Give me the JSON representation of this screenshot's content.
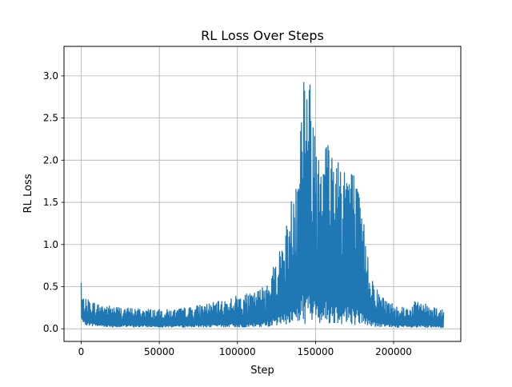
{
  "chart_data": {
    "type": "line",
    "title": "RL Loss Over Steps",
    "xlabel": "Step",
    "ylabel": "RL Loss",
    "xlim": [
      -11000,
      243000
    ],
    "ylim": [
      -0.15,
      3.35
    ],
    "xticks": [
      0,
      50000,
      100000,
      150000,
      200000
    ],
    "xtick_labels": [
      "0",
      "50000",
      "100000",
      "150000",
      "200000"
    ],
    "yticks": [
      0.0,
      0.5,
      1.0,
      1.5,
      2.0,
      2.5,
      3.0
    ],
    "ytick_labels": [
      "0.0",
      "0.5",
      "1.0",
      "1.5",
      "2.0",
      "2.5",
      "3.0"
    ],
    "grid": true,
    "line_color": "#1f77b4",
    "series": [
      {
        "x": [
          0,
          500,
          2000,
          5000,
          10000,
          20000,
          30000,
          40000,
          50000,
          60000,
          70000,
          80000,
          90000,
          100000,
          110000,
          115000,
          120000,
          125000,
          130000,
          135000,
          140000,
          142000,
          145000,
          150000,
          155000,
          160000,
          165000,
          170000,
          175000,
          180000,
          185000,
          190000,
          195000,
          200000,
          210000,
          215000,
          220000,
          225000,
          232000
        ],
        "lower": [
          0.15,
          0.08,
          0.05,
          0.04,
          0.03,
          0.02,
          0.02,
          0.02,
          0.02,
          0.02,
          0.02,
          0.02,
          0.02,
          0.02,
          0.02,
          0.02,
          0.03,
          0.04,
          0.05,
          0.06,
          0.06,
          0.06,
          0.06,
          0.06,
          0.06,
          0.06,
          0.06,
          0.05,
          0.05,
          0.04,
          0.03,
          0.02,
          0.02,
          0.02,
          0.01,
          0.01,
          0.01,
          0.01,
          0.01
        ],
        "upper": [
          0.62,
          0.4,
          0.35,
          0.35,
          0.3,
          0.27,
          0.25,
          0.24,
          0.23,
          0.23,
          0.26,
          0.3,
          0.33,
          0.4,
          0.42,
          0.48,
          0.6,
          0.85,
          1.1,
          1.6,
          2.4,
          3.2,
          3.2,
          2.4,
          2.45,
          2.2,
          2.15,
          2.05,
          1.85,
          1.4,
          0.7,
          0.45,
          0.35,
          0.3,
          0.25,
          0.35,
          0.3,
          0.28,
          0.22
        ]
      }
    ]
  }
}
